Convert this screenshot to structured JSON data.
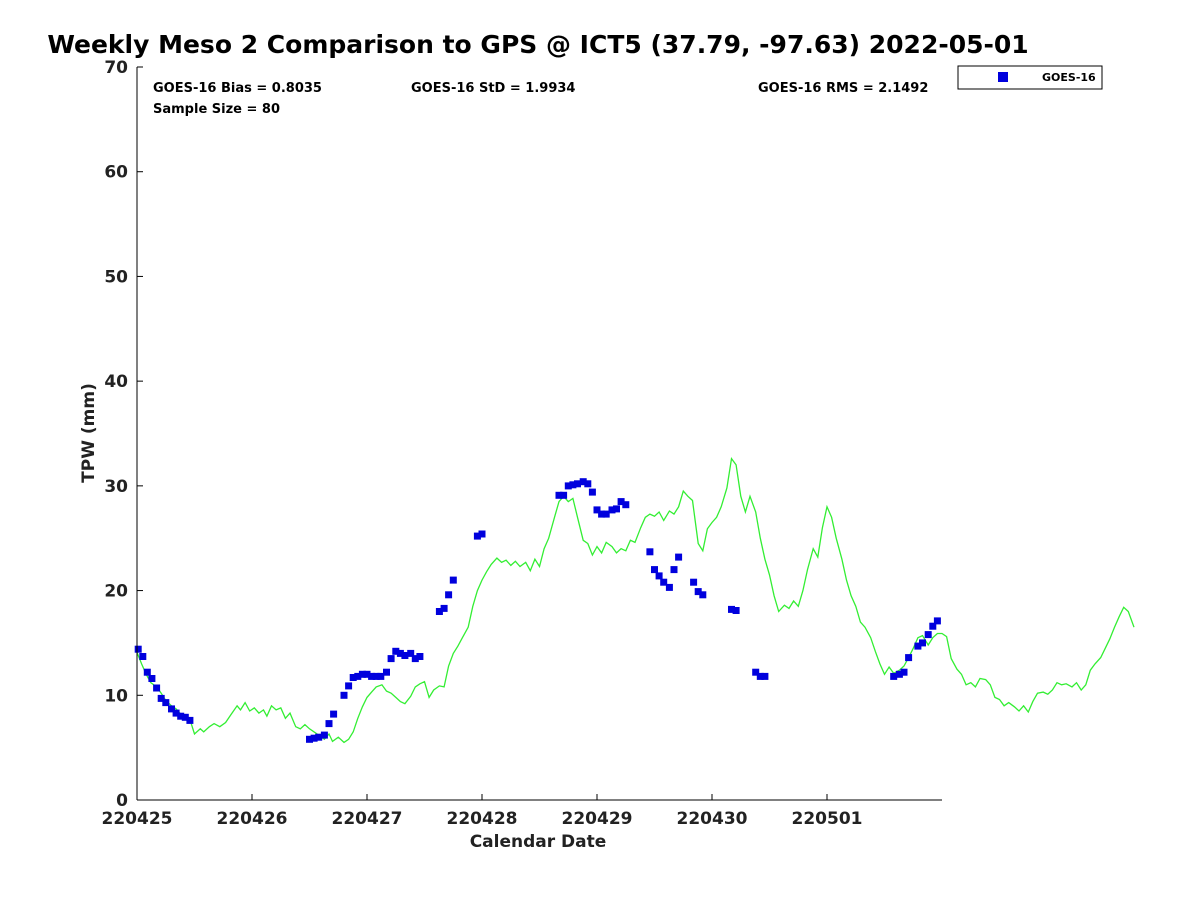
{
  "chart_data": {
    "type": "scatter",
    "title": "Weekly Meso 2 Comparison to GPS @ ICT5 (37.79, -97.63) 2022-05-01",
    "xlabel": "Calendar Date",
    "ylabel": "TPW (mm)",
    "ylim": [
      0,
      70
    ],
    "yticks": [
      0,
      10,
      20,
      30,
      40,
      50,
      60,
      70
    ],
    "xlim_days": [
      0,
      7
    ],
    "xticks": [
      {
        "day": 0,
        "label": "220425"
      },
      {
        "day": 1,
        "label": "220426"
      },
      {
        "day": 2,
        "label": "220427"
      },
      {
        "day": 3,
        "label": "220428"
      },
      {
        "day": 4,
        "label": "220429"
      },
      {
        "day": 5,
        "label": "220430"
      },
      {
        "day": 6,
        "label": "220501"
      }
    ],
    "grid": false,
    "legend_position": "top-right",
    "stats": {
      "bias": "GOES-16 Bias = 0.8035",
      "std": "GOES-16 StD = 1.9934",
      "rms": "GOES-16 RMS = 2.1492",
      "sample": "Sample Size = 80"
    },
    "series": [
      {
        "name": "GOES-16",
        "kind": "scatter",
        "color": "#0000dd",
        "points": [
          [
            0.01,
            14.4
          ],
          [
            0.05,
            13.7
          ],
          [
            0.09,
            12.2
          ],
          [
            0.13,
            11.6
          ],
          [
            0.17,
            10.7
          ],
          [
            0.21,
            9.7
          ],
          [
            0.25,
            9.3
          ],
          [
            0.3,
            8.7
          ],
          [
            0.34,
            8.3
          ],
          [
            0.38,
            8.0
          ],
          [
            0.42,
            7.9
          ],
          [
            0.46,
            7.6
          ],
          [
            1.5,
            5.8
          ],
          [
            1.54,
            5.9
          ],
          [
            1.58,
            6.0
          ],
          [
            1.63,
            6.2
          ],
          [
            1.67,
            7.3
          ],
          [
            1.71,
            8.2
          ],
          [
            1.8,
            10.0
          ],
          [
            1.84,
            10.9
          ],
          [
            1.88,
            11.7
          ],
          [
            1.92,
            11.8
          ],
          [
            1.96,
            12.0
          ],
          [
            2.0,
            12.0
          ],
          [
            2.04,
            11.8
          ],
          [
            2.08,
            11.8
          ],
          [
            2.12,
            11.8
          ],
          [
            2.17,
            12.2
          ],
          [
            2.21,
            13.5
          ],
          [
            2.25,
            14.2
          ],
          [
            2.29,
            14.0
          ],
          [
            2.33,
            13.8
          ],
          [
            2.38,
            14.0
          ],
          [
            2.42,
            13.5
          ],
          [
            2.46,
            13.7
          ],
          [
            2.63,
            18.0
          ],
          [
            2.67,
            18.3
          ],
          [
            2.71,
            19.6
          ],
          [
            2.75,
            21.0
          ],
          [
            2.96,
            25.2
          ],
          [
            3.0,
            25.4
          ],
          [
            3.67,
            29.1
          ],
          [
            3.71,
            29.1
          ],
          [
            3.75,
            30.0
          ],
          [
            3.79,
            30.1
          ],
          [
            3.83,
            30.2
          ],
          [
            3.88,
            30.4
          ],
          [
            3.92,
            30.2
          ],
          [
            3.96,
            29.4
          ],
          [
            4.0,
            27.7
          ],
          [
            4.04,
            27.3
          ],
          [
            4.08,
            27.3
          ],
          [
            4.13,
            27.7
          ],
          [
            4.17,
            27.8
          ],
          [
            4.21,
            28.5
          ],
          [
            4.25,
            28.2
          ],
          [
            4.46,
            23.7
          ],
          [
            4.5,
            22.0
          ],
          [
            4.54,
            21.4
          ],
          [
            4.58,
            20.8
          ],
          [
            4.63,
            20.3
          ],
          [
            4.67,
            22.0
          ],
          [
            4.71,
            23.2
          ],
          [
            4.84,
            20.8
          ],
          [
            4.88,
            19.9
          ],
          [
            4.92,
            19.6
          ],
          [
            5.17,
            18.2
          ],
          [
            5.21,
            18.1
          ],
          [
            5.38,
            12.2
          ],
          [
            5.42,
            11.8
          ],
          [
            5.46,
            11.8
          ],
          [
            6.58,
            11.8
          ],
          [
            6.63,
            12.0
          ],
          [
            6.67,
            12.2
          ],
          [
            6.71,
            13.6
          ],
          [
            6.79,
            14.7
          ],
          [
            6.83,
            15.0
          ],
          [
            6.88,
            15.8
          ],
          [
            6.92,
            16.6
          ],
          [
            6.96,
            17.1
          ]
        ]
      },
      {
        "name": "",
        "kind": "line",
        "color": "#33ee33",
        "points": [
          [
            0.0,
            14.1
          ],
          [
            0.04,
            13.0
          ],
          [
            0.08,
            12.0
          ],
          [
            0.12,
            11.2
          ],
          [
            0.17,
            10.8
          ],
          [
            0.21,
            10.2
          ],
          [
            0.25,
            9.5
          ],
          [
            0.3,
            9.0
          ],
          [
            0.34,
            8.7
          ],
          [
            0.38,
            8.2
          ],
          [
            0.42,
            8.0
          ],
          [
            0.46,
            7.7
          ],
          [
            0.5,
            6.3
          ],
          [
            0.55,
            6.8
          ],
          [
            0.58,
            6.5
          ],
          [
            0.63,
            7.0
          ],
          [
            0.67,
            7.3
          ],
          [
            0.72,
            7.0
          ],
          [
            0.77,
            7.4
          ],
          [
            0.82,
            8.2
          ],
          [
            0.87,
            9.0
          ],
          [
            0.9,
            8.6
          ],
          [
            0.94,
            9.3
          ],
          [
            0.98,
            8.5
          ],
          [
            1.02,
            8.8
          ],
          [
            1.06,
            8.3
          ],
          [
            1.1,
            8.6
          ],
          [
            1.13,
            8.0
          ],
          [
            1.17,
            9.0
          ],
          [
            1.21,
            8.6
          ],
          [
            1.25,
            8.8
          ],
          [
            1.29,
            7.8
          ],
          [
            1.33,
            8.3
          ],
          [
            1.38,
            7.0
          ],
          [
            1.42,
            6.8
          ],
          [
            1.46,
            7.2
          ],
          [
            1.5,
            6.8
          ],
          [
            1.54,
            6.5
          ],
          [
            1.58,
            6.2
          ],
          [
            1.63,
            5.8
          ],
          [
            1.67,
            6.3
          ],
          [
            1.7,
            5.6
          ],
          [
            1.75,
            6.0
          ],
          [
            1.8,
            5.5
          ],
          [
            1.84,
            5.8
          ],
          [
            1.88,
            6.5
          ],
          [
            1.92,
            7.8
          ],
          [
            1.96,
            8.9
          ],
          [
            2.0,
            9.8
          ],
          [
            2.04,
            10.3
          ],
          [
            2.08,
            10.8
          ],
          [
            2.13,
            11.0
          ],
          [
            2.17,
            10.4
          ],
          [
            2.21,
            10.2
          ],
          [
            2.25,
            9.8
          ],
          [
            2.29,
            9.4
          ],
          [
            2.33,
            9.2
          ],
          [
            2.38,
            9.9
          ],
          [
            2.42,
            10.8
          ],
          [
            2.46,
            11.1
          ],
          [
            2.5,
            11.3
          ],
          [
            2.54,
            9.8
          ],
          [
            2.58,
            10.5
          ],
          [
            2.63,
            10.9
          ],
          [
            2.67,
            10.8
          ],
          [
            2.71,
            12.8
          ],
          [
            2.75,
            14.0
          ],
          [
            2.79,
            14.7
          ],
          [
            2.83,
            15.5
          ],
          [
            2.88,
            16.5
          ],
          [
            2.92,
            18.5
          ],
          [
            2.96,
            20.0
          ],
          [
            3.0,
            21.0
          ],
          [
            3.04,
            21.8
          ],
          [
            3.08,
            22.5
          ],
          [
            3.13,
            23.1
          ],
          [
            3.17,
            22.7
          ],
          [
            3.21,
            22.9
          ],
          [
            3.25,
            22.4
          ],
          [
            3.29,
            22.8
          ],
          [
            3.33,
            22.3
          ],
          [
            3.38,
            22.7
          ],
          [
            3.42,
            21.9
          ],
          [
            3.46,
            23.0
          ],
          [
            3.5,
            22.3
          ],
          [
            3.54,
            24.0
          ],
          [
            3.58,
            25.0
          ],
          [
            3.63,
            27.0
          ],
          [
            3.67,
            28.5
          ],
          [
            3.71,
            29.0
          ],
          [
            3.75,
            28.5
          ],
          [
            3.79,
            28.8
          ],
          [
            3.83,
            27.0
          ],
          [
            3.88,
            24.8
          ],
          [
            3.92,
            24.5
          ],
          [
            3.96,
            23.4
          ],
          [
            4.0,
            24.2
          ],
          [
            4.04,
            23.6
          ],
          [
            4.08,
            24.6
          ],
          [
            4.13,
            24.2
          ],
          [
            4.17,
            23.6
          ],
          [
            4.21,
            24.0
          ],
          [
            4.25,
            23.8
          ],
          [
            4.29,
            24.8
          ],
          [
            4.33,
            24.6
          ],
          [
            4.38,
            26.0
          ],
          [
            4.42,
            27.0
          ],
          [
            4.46,
            27.3
          ],
          [
            4.5,
            27.1
          ],
          [
            4.54,
            27.5
          ],
          [
            4.58,
            26.7
          ],
          [
            4.63,
            27.6
          ],
          [
            4.67,
            27.3
          ],
          [
            4.71,
            28.0
          ],
          [
            4.75,
            29.5
          ],
          [
            4.79,
            29.0
          ],
          [
            4.83,
            28.6
          ],
          [
            4.88,
            24.5
          ],
          [
            4.92,
            23.8
          ],
          [
            4.96,
            25.9
          ],
          [
            5.0,
            26.5
          ],
          [
            5.04,
            27.0
          ],
          [
            5.08,
            28.0
          ],
          [
            5.13,
            29.8
          ],
          [
            5.17,
            32.6
          ],
          [
            5.21,
            32.0
          ],
          [
            5.25,
            29.0
          ],
          [
            5.29,
            27.5
          ],
          [
            5.33,
            29.0
          ],
          [
            5.38,
            27.5
          ],
          [
            5.42,
            25.0
          ],
          [
            5.46,
            23.0
          ],
          [
            5.5,
            21.5
          ],
          [
            5.54,
            19.5
          ],
          [
            5.58,
            18.0
          ],
          [
            5.63,
            18.6
          ],
          [
            5.67,
            18.3
          ],
          [
            5.71,
            19.0
          ],
          [
            5.75,
            18.5
          ],
          [
            5.79,
            20.0
          ],
          [
            5.83,
            22.0
          ],
          [
            5.88,
            24.0
          ],
          [
            5.92,
            23.2
          ],
          [
            5.96,
            26.0
          ],
          [
            6.0,
            28.0
          ],
          [
            6.04,
            27.0
          ],
          [
            6.08,
            25.0
          ],
          [
            6.13,
            23.0
          ],
          [
            6.17,
            21.0
          ],
          [
            6.21,
            19.5
          ],
          [
            6.25,
            18.5
          ],
          [
            6.29,
            17.0
          ],
          [
            6.33,
            16.5
          ],
          [
            6.38,
            15.5
          ],
          [
            6.42,
            14.2
          ],
          [
            6.46,
            13.0
          ],
          [
            6.5,
            12.0
          ],
          [
            6.54,
            12.7
          ],
          [
            6.58,
            12.1
          ],
          [
            6.63,
            12.4
          ],
          [
            6.67,
            12.8
          ],
          [
            6.71,
            13.6
          ],
          [
            6.75,
            14.5
          ],
          [
            6.79,
            15.5
          ],
          [
            6.83,
            15.7
          ],
          [
            6.88,
            14.8
          ],
          [
            6.92,
            15.5
          ],
          [
            6.96,
            15.9
          ],
          [
            7.0,
            15.9
          ],
          [
            7.04,
            15.6
          ],
          [
            7.08,
            13.5
          ],
          [
            7.13,
            12.5
          ],
          [
            7.17,
            12.0
          ],
          [
            7.21,
            11.0
          ],
          [
            7.25,
            11.2
          ],
          [
            7.29,
            10.8
          ],
          [
            7.33,
            11.6
          ],
          [
            7.38,
            11.5
          ],
          [
            7.42,
            11.0
          ],
          [
            7.46,
            9.8
          ],
          [
            7.5,
            9.6
          ],
          [
            7.54,
            9.0
          ],
          [
            7.58,
            9.3
          ],
          [
            7.63,
            8.9
          ],
          [
            7.67,
            8.5
          ],
          [
            7.71,
            9.0
          ],
          [
            7.75,
            8.4
          ],
          [
            7.79,
            9.4
          ],
          [
            7.83,
            10.2
          ],
          [
            7.88,
            10.3
          ],
          [
            7.92,
            10.1
          ],
          [
            7.96,
            10.5
          ],
          [
            8.0,
            11.2
          ],
          [
            8.04,
            11.0
          ],
          [
            8.08,
            11.1
          ],
          [
            8.13,
            10.8
          ],
          [
            8.17,
            11.2
          ],
          [
            8.21,
            10.5
          ],
          [
            8.25,
            11.0
          ],
          [
            8.29,
            12.4
          ],
          [
            8.33,
            13.0
          ],
          [
            8.38,
            13.6
          ],
          [
            8.42,
            14.5
          ],
          [
            8.46,
            15.4
          ],
          [
            8.5,
            16.5
          ],
          [
            8.54,
            17.5
          ],
          [
            8.58,
            18.4
          ],
          [
            8.62,
            18.0
          ],
          [
            8.67,
            16.5
          ]
        ]
      }
    ]
  }
}
